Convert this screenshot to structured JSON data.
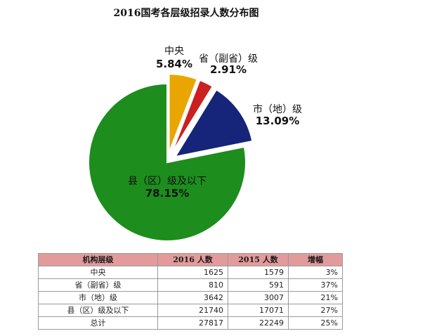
{
  "chart_data": {
    "type": "pie",
    "title": "2016国考各层级招录人数分布图",
    "slices": [
      {
        "name": "中央",
        "value": 5.84,
        "label": "5.84%",
        "color": "#e9a600"
      },
      {
        "name": "省（副省）级",
        "value": 2.91,
        "label": "2.91%",
        "color": "#cc1f1f"
      },
      {
        "name": "市（地）级",
        "value": 13.09,
        "label": "13.09%",
        "color": "#16247a"
      },
      {
        "name": "县（区）级及以下",
        "value": 78.15,
        "label": "78.15%",
        "color": "#1d8d1d"
      }
    ]
  },
  "table": {
    "headers": [
      "机构层级",
      "2016 人数",
      "2015 人数",
      "增幅"
    ],
    "rows": [
      [
        "中央",
        "1625",
        "1579",
        "3%"
      ],
      [
        "省（副省）级",
        "810",
        "591",
        "37%"
      ],
      [
        "市（地）级",
        "3642",
        "3007",
        "21%"
      ],
      [
        "县（区）级及以下",
        "21740",
        "17071",
        "27%"
      ],
      [
        "总计",
        "27817",
        "22249",
        "25%"
      ]
    ]
  }
}
